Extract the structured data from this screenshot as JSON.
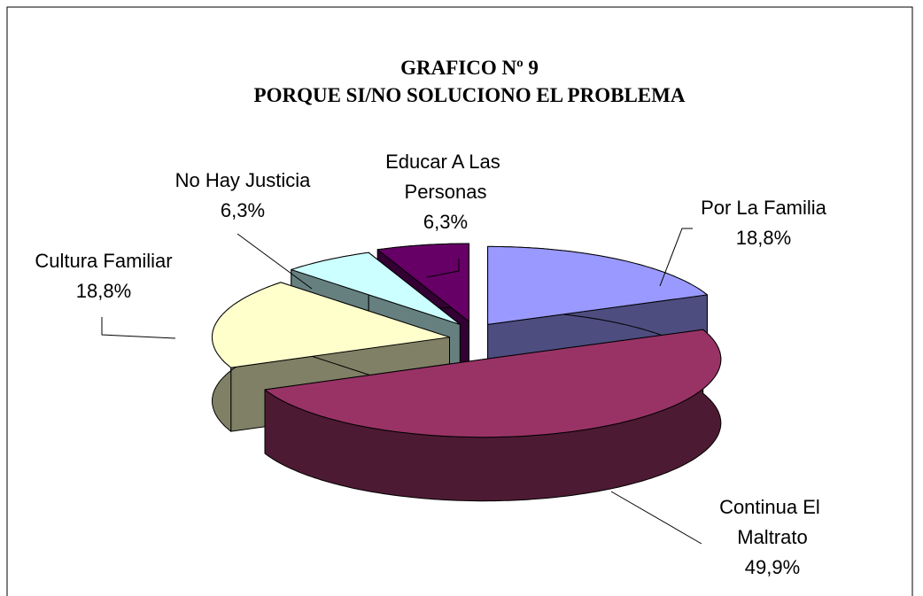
{
  "chart_data": {
    "type": "pie3d",
    "title": "GRAFICO Nº 9",
    "subtitle": "PORQUE SI/NO SOLUCIONO EL PROBLEMA",
    "categories": [
      "Por La Familia",
      "Continua El Maltrato",
      "Cultura Familiar",
      "No Hay Justicia",
      "Educar A Las Personas"
    ],
    "values": [
      18.8,
      49.9,
      18.8,
      6.3,
      6.3
    ],
    "value_labels": [
      "18,8%",
      "49,9%",
      "18,8%",
      "6,3%",
      "6,3%"
    ],
    "colors": [
      "#9999ff",
      "#993366",
      "#ffffcc",
      "#ccffff",
      "#660066"
    ]
  }
}
